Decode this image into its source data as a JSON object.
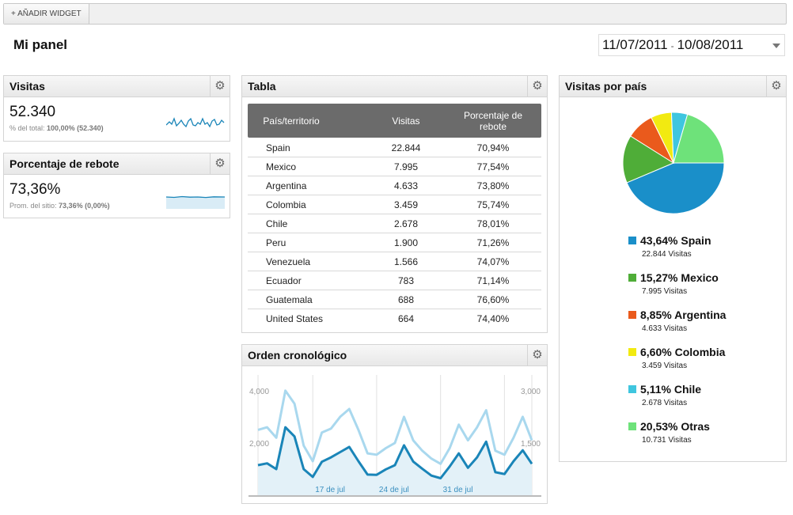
{
  "toolbar": {
    "add_widget_label": "+ AÑADIR WIDGET"
  },
  "page": {
    "title": "Mi panel"
  },
  "date_range": {
    "start": "11/07/2011",
    "separator": "-",
    "end": "10/08/2011"
  },
  "widgets": {
    "visitas": {
      "title": "Visitas",
      "value": "52.340",
      "sub_label": "% del total:",
      "sub_value": "100,00% (52.340)"
    },
    "rebote": {
      "title": "Porcentaje de rebote",
      "value": "73,36%",
      "sub_label": "Prom. del sitio:",
      "sub_value": "73,36% (0,00%)"
    },
    "tabla": {
      "title": "Tabla",
      "columns": [
        "País/territorio",
        "Visitas",
        "Porcentaje de rebote"
      ],
      "rows": [
        {
          "country": "Spain",
          "visits": "22.844",
          "bounce": "70,94%"
        },
        {
          "country": "Mexico",
          "visits": "7.995",
          "bounce": "77,54%"
        },
        {
          "country": "Argentina",
          "visits": "4.633",
          "bounce": "73,80%"
        },
        {
          "country": "Colombia",
          "visits": "3.459",
          "bounce": "75,74%"
        },
        {
          "country": "Chile",
          "visits": "2.678",
          "bounce": "78,01%"
        },
        {
          "country": "Peru",
          "visits": "1.900",
          "bounce": "71,26%"
        },
        {
          "country": "Venezuela",
          "visits": "1.566",
          "bounce": "74,07%"
        },
        {
          "country": "Ecuador",
          "visits": "783",
          "bounce": "71,14%"
        },
        {
          "country": "Guatemala",
          "visits": "688",
          "bounce": "76,60%"
        },
        {
          "country": "United States",
          "visits": "664",
          "bounce": "74,40%"
        }
      ]
    },
    "cronologico": {
      "title": "Orden cronológico"
    },
    "pais": {
      "title": "Visitas por país",
      "legend": [
        {
          "pct": "43,64%",
          "name": "Spain",
          "sub": "22.844 Visitas",
          "color": "#1a8fc9"
        },
        {
          "pct": "15,27%",
          "name": "Mexico",
          "sub": "7.995 Visitas",
          "color": "#4fad38"
        },
        {
          "pct": "8,85%",
          "name": "Argentina",
          "sub": "4.633 Visitas",
          "color": "#ea5a1c"
        },
        {
          "pct": "6,60%",
          "name": "Colombia",
          "sub": "3.459 Visitas",
          "color": "#f2ea11"
        },
        {
          "pct": "5,11%",
          "name": "Chile",
          "sub": "2.678 Visitas",
          "color": "#3fc6df"
        },
        {
          "pct": "20,53%",
          "name": "Otras",
          "sub": "10.731 Visitas",
          "color": "#6ee27a"
        }
      ]
    }
  },
  "chart_data": [
    {
      "type": "pie",
      "categories": [
        "Spain",
        "Mexico",
        "Argentina",
        "Colombia",
        "Chile",
        "Otras"
      ],
      "values": [
        43.64,
        15.27,
        8.85,
        6.6,
        5.11,
        20.53
      ],
      "colors": [
        "#1a8fc9",
        "#4fad38",
        "#ea5a1c",
        "#f2ea11",
        "#3fc6df",
        "#6ee27a"
      ]
    },
    {
      "type": "line",
      "x_ticks": [
        "17 de jul",
        "24 de jul",
        "31 de jul"
      ],
      "left_axis": {
        "ticks": [
          "2,000",
          "4,000"
        ],
        "range": [
          0,
          4600
        ]
      },
      "right_axis": {
        "ticks": [
          "1,500",
          "3,000"
        ],
        "range": [
          0,
          3450
        ]
      },
      "series": [
        {
          "color": "#a9d8ee",
          "values": [
            2500,
            2600,
            2200,
            4000,
            3500,
            1900,
            1300,
            2400,
            2550,
            3000,
            3300,
            2500,
            1600,
            1550,
            1800,
            2000,
            3000,
            2100,
            1700,
            1400,
            1200,
            1800,
            2700,
            2100,
            2600,
            3250,
            1700,
            1550,
            2200,
            3000,
            2100
          ]
        },
        {
          "color": "#1a85b8",
          "values": [
            1150,
            1220,
            1000,
            2600,
            2250,
            1000,
            700,
            1280,
            1450,
            1650,
            1850,
            1300,
            790,
            780,
            990,
            1150,
            1910,
            1290,
            1010,
            750,
            650,
            1100,
            1600,
            1050,
            1450,
            2050,
            880,
            810,
            1300,
            1720,
            1200
          ]
        }
      ]
    }
  ]
}
